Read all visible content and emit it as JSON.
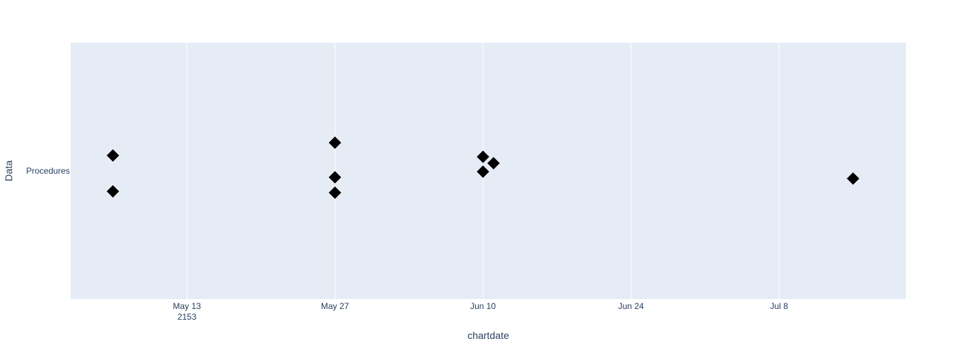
{
  "chart_data": {
    "type": "scatter",
    "xlabel": "chartdate",
    "ylabel": "Data",
    "x_axis_type": "date",
    "xlim": [
      "2153-05-02",
      "2153-07-20"
    ],
    "x_ticks": [
      {
        "date": "2153-05-13",
        "label": "May 13",
        "sublabel": "2153"
      },
      {
        "date": "2153-05-27",
        "label": "May 27",
        "sublabel": ""
      },
      {
        "date": "2153-06-10",
        "label": "Jun 10",
        "sublabel": ""
      },
      {
        "date": "2153-06-24",
        "label": "Jun 24",
        "sublabel": ""
      },
      {
        "date": "2153-07-08",
        "label": "Jul 8",
        "sublabel": ""
      }
    ],
    "categories": [
      "Procedures"
    ],
    "ylim": [
      -0.5,
      0.5
    ],
    "grid": {
      "x": true,
      "y": false
    },
    "marker": {
      "symbol": "diamond",
      "color": "#000000"
    },
    "colors": {
      "plot_bg": "#e5ecf6",
      "grid": "#ffffff",
      "text": "#2a3f5f"
    },
    "series": [
      {
        "category": "Procedures",
        "points": [
          {
            "x": "2153-05-06T00:00",
            "y": 0.06
          },
          {
            "x": "2153-05-06T00:00",
            "y": -0.08
          },
          {
            "x": "2153-05-27T00:00",
            "y": 0.11
          },
          {
            "x": "2153-05-27T00:00",
            "y": -0.025
          },
          {
            "x": "2153-05-27T00:00",
            "y": -0.085
          },
          {
            "x": "2153-06-10T00:00",
            "y": 0.055
          },
          {
            "x": "2153-06-11T00:00",
            "y": 0.03
          },
          {
            "x": "2153-06-10T00:00",
            "y": -0.003
          },
          {
            "x": "2153-07-15T00:00",
            "y": -0.03
          }
        ]
      }
    ]
  }
}
